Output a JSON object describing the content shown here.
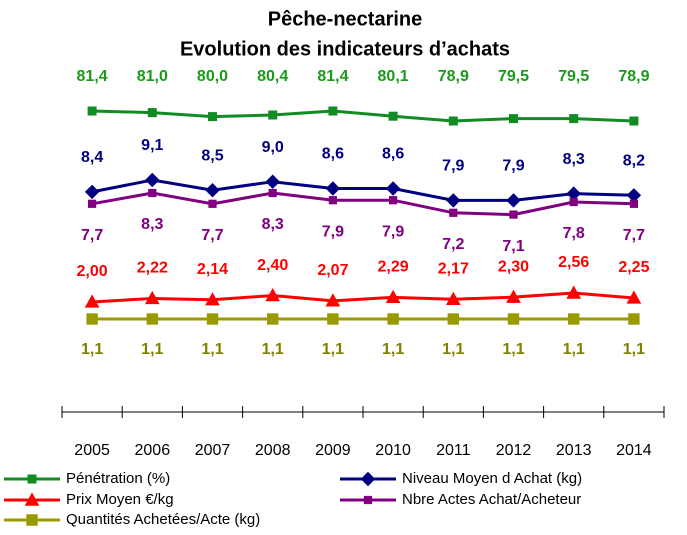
{
  "chart_data": {
    "type": "line",
    "title": "Pêche-nectarine",
    "subtitle": "Evolution des indicateurs d’achats",
    "categories": [
      "2005",
      "2006",
      "2007",
      "2008",
      "2009",
      "2010",
      "2011",
      "2012",
      "2013",
      "2014"
    ],
    "series": [
      {
        "name": "Pénétration (%)",
        "color": "#118c22",
        "marker": "square",
        "values": [
          81.4,
          81.0,
          80.0,
          80.4,
          81.4,
          80.1,
          78.9,
          79.5,
          79.5,
          78.9
        ],
        "value_labels": [
          "81,4",
          "81,0",
          "80,0",
          "80,4",
          "81,4",
          "80,1",
          "78,9",
          "79,5",
          "79,5",
          "78,9"
        ]
      },
      {
        "name": "Niveau Moyen d Achat (kg)",
        "color": "#000080",
        "marker": "diamond",
        "values": [
          8.4,
          9.1,
          8.5,
          9.0,
          8.6,
          8.6,
          7.9,
          7.9,
          8.3,
          8.2
        ],
        "value_labels": [
          "8,4",
          "9,1",
          "8,5",
          "9,0",
          "8,6",
          "8,6",
          "7,9",
          "7,9",
          "8,3",
          "8,2"
        ]
      },
      {
        "name": "Prix Moyen €/kg",
        "color": "#ff0000",
        "marker": "triangle",
        "values": [
          2.0,
          2.22,
          2.14,
          2.4,
          2.07,
          2.29,
          2.17,
          2.3,
          2.56,
          2.25
        ],
        "value_labels": [
          "2,00",
          "2,22",
          "2,14",
          "2,40",
          "2,07",
          "2,29",
          "2,17",
          "2,30",
          "2,56",
          "2,25"
        ]
      },
      {
        "name": "Nbre Actes Achat/Acheteur",
        "color": "#800080",
        "marker": "square",
        "values": [
          7.7,
          8.3,
          7.7,
          8.3,
          7.9,
          7.9,
          7.2,
          7.1,
          7.8,
          7.7
        ],
        "value_labels": [
          "7,7",
          "8,3",
          "7,7",
          "8,3",
          "7,9",
          "7,9",
          "7,2",
          "7,1",
          "7,8",
          "7,7"
        ]
      },
      {
        "name": "Quantités Achetées/Acte (kg)",
        "color": "#999900",
        "marker": "square",
        "values": [
          1.1,
          1.1,
          1.1,
          1.1,
          1.1,
          1.1,
          1.1,
          1.1,
          1.1,
          1.1
        ],
        "value_labels": [
          "1,1",
          "1,1",
          "1,1",
          "1,1",
          "1,1",
          "1,1",
          "1,1",
          "1,1",
          "1,1",
          "1,1"
        ]
      }
    ]
  }
}
